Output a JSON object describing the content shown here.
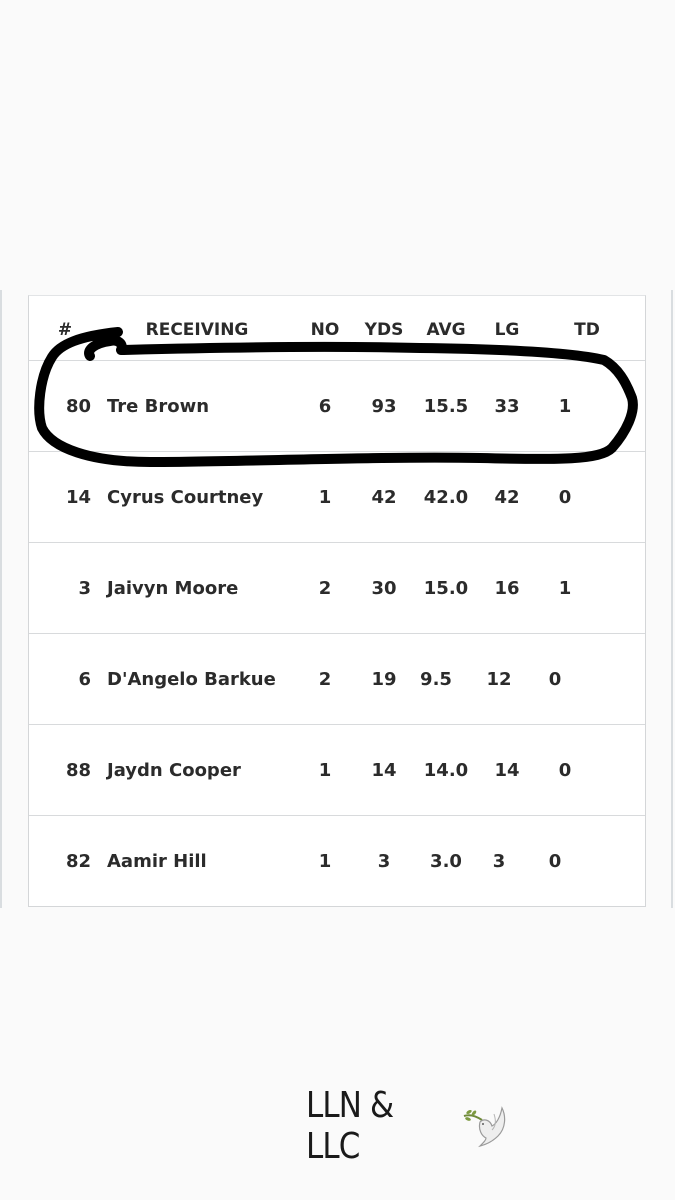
{
  "table": {
    "headers": {
      "num": "#",
      "name": "RECEIVING",
      "no": "NO",
      "yds": "YDS",
      "avg": "AVG",
      "lg": "LG",
      "td": "TD"
    },
    "rows": [
      {
        "num": "80",
        "name": "Tre Brown",
        "no": "6",
        "yds": "93",
        "avg": "15.5",
        "lg": "33",
        "td": "1"
      },
      {
        "num": "14",
        "name": "Cyrus Courtney",
        "no": "1",
        "yds": "42",
        "avg": "42.0",
        "lg": "42",
        "td": "0"
      },
      {
        "num": "3",
        "name": "Jaivyn Moore",
        "no": "2",
        "yds": "30",
        "avg": "15.0",
        "lg": "16",
        "td": "1"
      },
      {
        "num": "6",
        "name": "D'Angelo Barkue",
        "no": "2",
        "yds": "19",
        "avg": "9.5",
        "lg": "12",
        "td": "0"
      },
      {
        "num": "88",
        "name": "Jaydn Cooper",
        "no": "1",
        "yds": "14",
        "avg": "14.0",
        "lg": "14",
        "td": "0"
      },
      {
        "num": "82",
        "name": "Aamir Hill",
        "no": "1",
        "yds": "3",
        "avg": "3.0",
        "lg": "3",
        "td": "0"
      }
    ]
  },
  "highlight": {
    "row": "Tre Brown",
    "color": "#000000"
  },
  "watermark": {
    "text": "LLN & LLC",
    "icon": "dove-icon"
  },
  "colors": {
    "background": "#fafafa",
    "card": "#ffffff",
    "border": "#d8dadc",
    "text": "#2b2b2b"
  }
}
